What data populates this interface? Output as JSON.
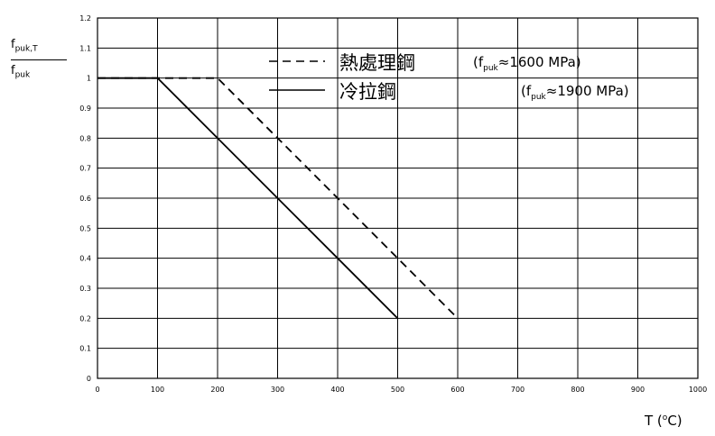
{
  "chart_data": {
    "type": "line",
    "y_label_top": "f",
    "y_label_top_sub": "puk,T",
    "y_label_bottom": "f",
    "y_label_bottom_sub": "puk",
    "x_label": "T (",
    "x_label_sup": "o",
    "x_label_end": "C)",
    "xlim": [
      0,
      1000
    ],
    "ylim": [
      0,
      1.2
    ],
    "x_ticks": [
      "0",
      "100",
      "200",
      "300",
      "400",
      "500",
      "600",
      "700",
      "800",
      "900",
      "1000"
    ],
    "y_ticks": [
      "0",
      "0.1",
      "0.2",
      "0.3",
      "0.4",
      "0.5",
      "0.6",
      "0.7",
      "0.8",
      "0.9",
      "1",
      "1.1",
      "1.2"
    ],
    "grid": true,
    "series": [
      {
        "name": "熱處理鋼",
        "note_pre": "(f",
        "note_sub": "puk",
        "note_post": "≈1600 MPa)",
        "style": "dashed",
        "color": "#000000",
        "x": [
          0,
          200,
          600
        ],
        "y": [
          1.0,
          1.0,
          0.2
        ]
      },
      {
        "name": "冷拉鋼",
        "note_pre": "(f",
        "note_sub": "puk",
        "note_post": "≈1900 MPa)",
        "style": "solid",
        "color": "#000000",
        "x": [
          0,
          100,
          500
        ],
        "y": [
          1.0,
          1.0,
          0.2
        ]
      }
    ]
  }
}
